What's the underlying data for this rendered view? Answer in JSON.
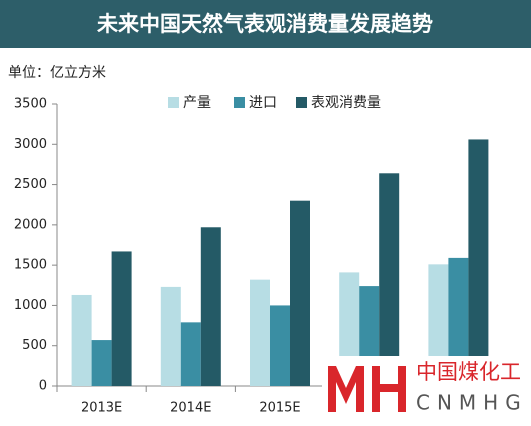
{
  "chart_data": {
    "type": "bar",
    "title": "未来中国天然气表观消费量发展趋势",
    "unit_label": "单位：亿立方米",
    "categories": [
      "2013E",
      "2014E",
      "2015E",
      null,
      null
    ],
    "series": [
      {
        "name": "产量",
        "color": "#b7dde4",
        "values": [
          1130,
          1230,
          1320,
          1410,
          1510
        ]
      },
      {
        "name": "进口",
        "color": "#3a8ea3",
        "values": [
          570,
          790,
          1000,
          1240,
          1590
        ]
      },
      {
        "name": "表观消费量",
        "color": "#245a66",
        "values": [
          1670,
          1970,
          2300,
          2640,
          3060
        ]
      }
    ],
    "ylim": [
      0,
      3500
    ],
    "yticks": [
      0,
      500,
      1000,
      1500,
      2000,
      2500,
      3000,
      3500
    ],
    "grid": false,
    "legend": "top",
    "watermark": {
      "name": "中国煤化工",
      "latin": "CNMHG"
    }
  }
}
